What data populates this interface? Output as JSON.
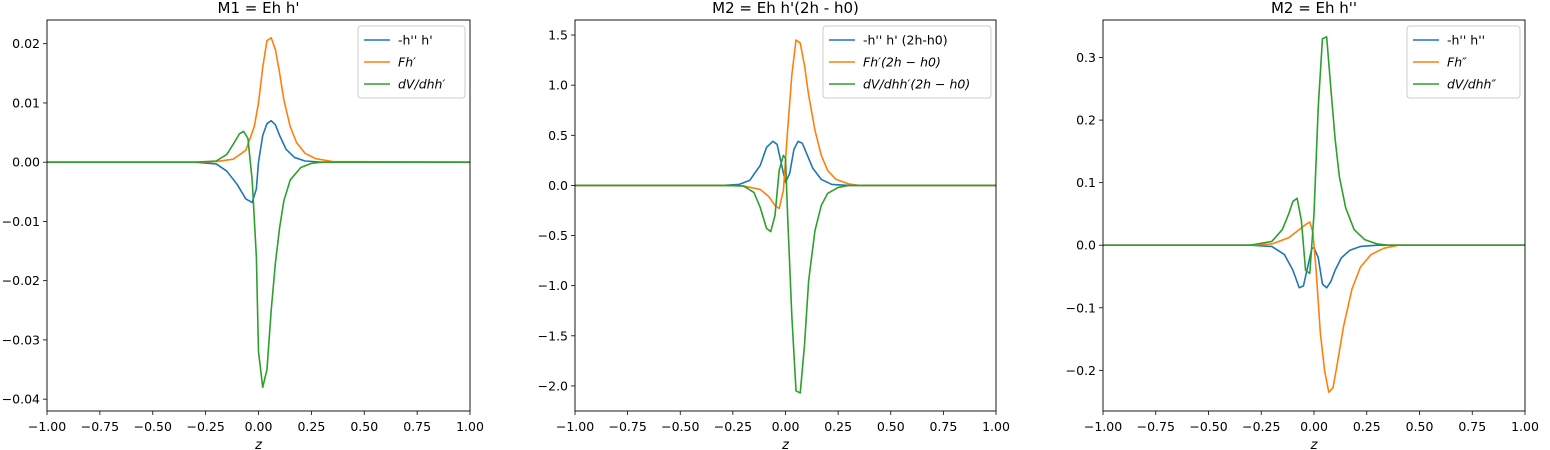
{
  "chart_data": [
    {
      "type": "line",
      "title": "M1 = Eh h'",
      "xlabel": "z",
      "xlim": [
        -1.0,
        1.0
      ],
      "ylim": [
        -0.042,
        0.024
      ],
      "xticks": [
        -1.0,
        -0.75,
        -0.5,
        -0.25,
        0.0,
        0.25,
        0.5,
        0.75,
        1.0
      ],
      "xtick_labels": [
        "−1.00",
        "−0.75",
        "−0.50",
        "−0.25",
        "0.00",
        "0.25",
        "0.50",
        "0.75",
        "1.00"
      ],
      "yticks": [
        -0.04,
        -0.03,
        -0.02,
        -0.01,
        0.0,
        0.01,
        0.02
      ],
      "ytick_labels": [
        "−0.04",
        "−0.03",
        "−0.02",
        "−0.01",
        "0.00",
        "0.01",
        "0.02"
      ],
      "legend_position": "top-right",
      "series": [
        {
          "name": "-h'' h'",
          "math": false,
          "color": "#1f77b4",
          "x": [
            -1.0,
            -0.3,
            -0.2,
            -0.15,
            -0.1,
            -0.06,
            -0.03,
            -0.01,
            0.0,
            0.02,
            0.04,
            0.06,
            0.08,
            0.1,
            0.13,
            0.17,
            0.22,
            0.3,
            1.0
          ],
          "y": [
            0,
            0,
            -0.0003,
            -0.0015,
            -0.0038,
            -0.0062,
            -0.0068,
            -0.0045,
            0.0,
            0.0045,
            0.0065,
            0.007,
            0.0063,
            0.0045,
            0.0022,
            0.0008,
            0.0002,
            0.0,
            0
          ]
        },
        {
          "name": "Fh′",
          "math": true,
          "color": "#ff7f0e",
          "x": [
            -1.0,
            -0.3,
            -0.2,
            -0.12,
            -0.06,
            -0.02,
            0.0,
            0.02,
            0.04,
            0.06,
            0.08,
            0.1,
            0.12,
            0.15,
            0.18,
            0.22,
            0.27,
            0.35,
            1.0
          ],
          "y": [
            0,
            0,
            0.0001,
            0.0005,
            0.002,
            0.006,
            0.01,
            0.016,
            0.0205,
            0.021,
            0.019,
            0.015,
            0.0105,
            0.006,
            0.0033,
            0.0015,
            0.0006,
            0.0001,
            0
          ]
        },
        {
          "name": "dV/dhh′",
          "math": true,
          "color": "#2ca02c",
          "x": [
            -1.0,
            -0.3,
            -0.2,
            -0.15,
            -0.12,
            -0.09,
            -0.07,
            -0.05,
            -0.03,
            -0.01,
            0.0,
            0.02,
            0.04,
            0.06,
            0.08,
            0.1,
            0.12,
            0.15,
            0.2,
            0.25,
            0.3,
            1.0
          ],
          "y": [
            0,
            0,
            0.0002,
            0.0013,
            0.003,
            0.0048,
            0.0052,
            0.004,
            -0.003,
            -0.016,
            -0.032,
            -0.038,
            -0.035,
            -0.025,
            -0.017,
            -0.011,
            -0.0065,
            -0.003,
            -0.0009,
            -0.0002,
            0.0,
            0
          ]
        }
      ]
    },
    {
      "type": "line",
      "title": "M2 = Eh h'(2h - h0)",
      "xlabel": "z",
      "xlim": [
        -1.0,
        1.0
      ],
      "ylim": [
        -2.25,
        1.65
      ],
      "xticks": [
        -1.0,
        -0.75,
        -0.5,
        -0.25,
        0.0,
        0.25,
        0.5,
        0.75,
        1.0
      ],
      "xtick_labels": [
        "−1.00",
        "−0.75",
        "−0.50",
        "−0.25",
        "0.00",
        "0.25",
        "0.50",
        "0.75",
        "1.00"
      ],
      "yticks": [
        -2.0,
        -1.5,
        -1.0,
        -0.5,
        0.0,
        0.5,
        1.0,
        1.5
      ],
      "ytick_labels": [
        "−2.0",
        "−1.5",
        "−1.0",
        "−0.5",
        "0.0",
        "0.5",
        "1.0",
        "1.5"
      ],
      "legend_position": "top-right",
      "series": [
        {
          "name": "-h'' h' (2h-h0)",
          "math": false,
          "color": "#1f77b4",
          "x": [
            -1.0,
            -0.3,
            -0.22,
            -0.17,
            -0.12,
            -0.09,
            -0.06,
            -0.04,
            -0.02,
            0.0,
            0.02,
            0.04,
            0.06,
            0.08,
            0.1,
            0.13,
            0.17,
            0.22,
            0.3,
            1.0
          ],
          "y": [
            0,
            0,
            0.01,
            0.05,
            0.2,
            0.38,
            0.44,
            0.41,
            0.22,
            0.03,
            0.12,
            0.36,
            0.44,
            0.42,
            0.32,
            0.17,
            0.06,
            0.01,
            0,
            0
          ]
        },
        {
          "name": "Fh′(2h − h0)",
          "math": true,
          "color": "#ff7f0e",
          "x": [
            -1.0,
            -0.3,
            -0.2,
            -0.12,
            -0.08,
            -0.05,
            -0.03,
            -0.01,
            0.0,
            0.01,
            0.03,
            0.05,
            0.07,
            0.09,
            0.11,
            0.14,
            0.17,
            0.2,
            0.24,
            0.3,
            0.35,
            1.0
          ],
          "y": [
            0,
            0,
            -0.005,
            -0.04,
            -0.11,
            -0.2,
            -0.23,
            -0.05,
            0.25,
            0.55,
            1.1,
            1.45,
            1.42,
            1.2,
            0.9,
            0.55,
            0.3,
            0.15,
            0.06,
            0.015,
            0,
            0
          ]
        },
        {
          "name": "dV/dhh′(2h − h0)",
          "math": true,
          "color": "#2ca02c",
          "x": [
            -1.0,
            -0.3,
            -0.2,
            -0.15,
            -0.12,
            -0.09,
            -0.07,
            -0.05,
            -0.03,
            -0.01,
            0.0,
            0.01,
            0.03,
            0.05,
            0.07,
            0.09,
            0.11,
            0.14,
            0.17,
            0.2,
            0.25,
            0.3,
            1.0
          ],
          "y": [
            0,
            0,
            -0.005,
            -0.07,
            -0.22,
            -0.43,
            -0.46,
            -0.3,
            0.15,
            0.3,
            0.27,
            -0.3,
            -1.3,
            -2.05,
            -2.07,
            -1.6,
            -0.95,
            -0.45,
            -0.2,
            -0.08,
            -0.02,
            0,
            0
          ]
        }
      ]
    },
    {
      "type": "line",
      "title": "M2 = Eh h''",
      "xlabel": "z",
      "xlim": [
        -1.0,
        1.0
      ],
      "ylim": [
        -0.265,
        0.36
      ],
      "xticks": [
        -1.0,
        -0.75,
        -0.5,
        -0.25,
        0.0,
        0.25,
        0.5,
        0.75,
        1.0
      ],
      "xtick_labels": [
        "−1.00",
        "−0.75",
        "−0.50",
        "−0.25",
        "0.00",
        "0.25",
        "0.50",
        "0.75",
        "1.00"
      ],
      "yticks": [
        -0.2,
        -0.1,
        0.0,
        0.1,
        0.2,
        0.3
      ],
      "ytick_labels": [
        "−0.2",
        "−0.1",
        "0.0",
        "0.1",
        "0.2",
        "0.3"
      ],
      "legend_position": "top-right",
      "series": [
        {
          "name": "-h'' h''",
          "math": false,
          "color": "#1f77b4",
          "x": [
            -1.0,
            -0.3,
            -0.2,
            -0.14,
            -0.1,
            -0.07,
            -0.05,
            -0.03,
            -0.01,
            0.0,
            0.02,
            0.04,
            0.06,
            0.08,
            0.1,
            0.13,
            0.17,
            0.22,
            0.3,
            1.0
          ],
          "y": [
            0,
            0,
            -0.002,
            -0.015,
            -0.04,
            -0.068,
            -0.065,
            -0.035,
            -0.005,
            -0.004,
            -0.02,
            -0.062,
            -0.068,
            -0.058,
            -0.04,
            -0.02,
            -0.008,
            -0.002,
            0,
            0
          ]
        },
        {
          "name": "Fh″",
          "math": true,
          "color": "#ff7f0e",
          "x": [
            -1.0,
            -0.3,
            -0.2,
            -0.12,
            -0.07,
            -0.04,
            -0.02,
            -0.005,
            0.01,
            0.03,
            0.05,
            0.07,
            0.09,
            0.11,
            0.14,
            0.18,
            0.22,
            0.27,
            0.33,
            0.4,
            1.0
          ],
          "y": [
            0,
            0,
            0.002,
            0.012,
            0.025,
            0.033,
            0.037,
            0.02,
            -0.04,
            -0.14,
            -0.2,
            -0.235,
            -0.228,
            -0.19,
            -0.13,
            -0.07,
            -0.035,
            -0.015,
            -0.005,
            0,
            0
          ]
        },
        {
          "name": "dV/dhh″",
          "math": true,
          "color": "#2ca02c",
          "x": [
            -1.0,
            -0.3,
            -0.2,
            -0.15,
            -0.12,
            -0.1,
            -0.08,
            -0.06,
            -0.04,
            -0.02,
            0.0,
            0.02,
            0.04,
            0.06,
            0.08,
            0.1,
            0.12,
            0.15,
            0.19,
            0.24,
            0.3,
            0.35,
            1.0
          ],
          "y": [
            0,
            0,
            0.006,
            0.025,
            0.05,
            0.07,
            0.075,
            0.04,
            -0.04,
            -0.045,
            0.05,
            0.22,
            0.33,
            0.333,
            0.25,
            0.17,
            0.11,
            0.06,
            0.025,
            0.009,
            0.002,
            0,
            0
          ]
        }
      ]
    }
  ]
}
